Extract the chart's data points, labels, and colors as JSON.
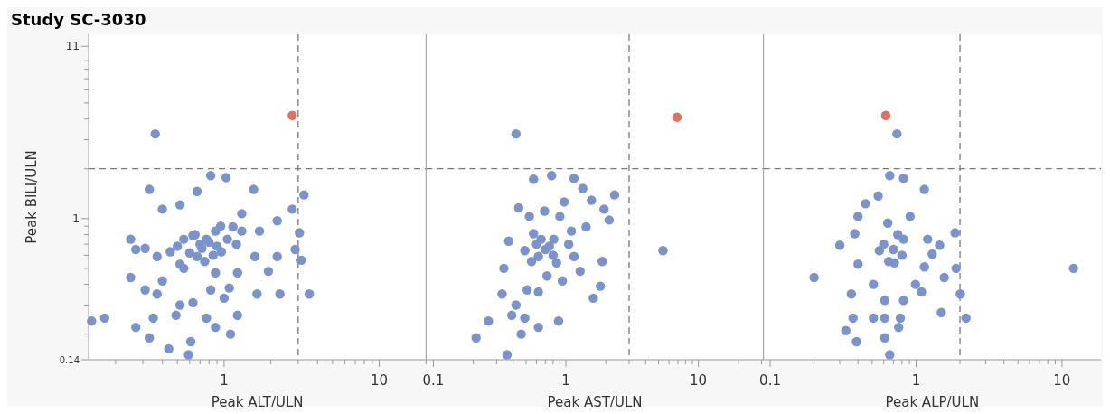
{
  "chart_data": [
    {
      "type": "scatter",
      "title": "Study SC-3030",
      "xlabel": "Peak ALT/ULN",
      "ylabel": "Peak BILI/ULN",
      "log": "xy",
      "marker": "circle",
      "xlim": [
        0.134,
        20
      ],
      "ylim": [
        0.14,
        13
      ],
      "xticks": [
        {
          "value": 0.2,
          "label": null
        },
        {
          "value": 0.3,
          "label": null
        },
        {
          "value": 0.4,
          "label": null
        },
        {
          "value": 0.5,
          "label": null
        },
        {
          "value": 0.6,
          "label": null
        },
        {
          "value": 0.7,
          "label": null
        },
        {
          "value": 0.8,
          "label": null
        },
        {
          "value": 0.9,
          "label": null
        },
        1,
        {
          "value": 2,
          "label": null
        },
        {
          "value": 3,
          "label": null
        },
        {
          "value": 4,
          "label": null
        },
        {
          "value": 5,
          "label": null
        },
        {
          "value": 6,
          "label": null
        },
        {
          "value": 7,
          "label": null
        },
        {
          "value": 8,
          "label": null
        },
        {
          "value": 9,
          "label": null
        },
        10,
        {
          "value": 20,
          "label": null
        }
      ],
      "yticks": [
        0.14,
        {
          "value": 0.2,
          "label": null
        },
        {
          "value": 0.3,
          "label": null
        },
        {
          "value": 0.4,
          "label": null
        },
        {
          "value": 0.5,
          "label": null
        },
        {
          "value": 0.6,
          "label": null
        },
        {
          "value": 0.7,
          "label": null
        },
        {
          "value": 0.8,
          "label": null
        },
        {
          "value": 0.9,
          "label": null
        },
        1,
        {
          "value": 2,
          "label": null
        },
        {
          "value": 3,
          "label": null
        },
        {
          "value": 4,
          "label": null
        },
        {
          "value": 5,
          "label": null
        },
        {
          "value": 6,
          "label": null
        },
        {
          "value": 7,
          "label": null
        },
        {
          "value": 8,
          "label": null
        },
        {
          "value": 9,
          "label": null
        },
        11
      ],
      "ref_lines": [
        {
          "axis": "y",
          "value": 2,
          "color": "#7a7a7a",
          "line_style": "dashed"
        },
        {
          "axis": "x",
          "value": 3,
          "color": "#7a7a7a",
          "line_style": "dashed"
        }
      ],
      "series": [
        {
          "color": "#7b93cb",
          "x": [
            0.82,
            1.03,
            1.55,
            0.33,
            2.75,
            3.27,
            2.2,
            3.06,
            2.87,
            3.14,
            3.54,
            2.29,
            1.63,
            0.35,
            0.17,
            0.14,
            0.27,
            0.33,
            0.44,
            0.88,
            1.1,
            0.59,
            0.61,
            0.25,
            0.25,
            0.27,
            0.4,
            0.52,
            0.67,
            0.77,
            0.88,
            1.14,
            1.3,
            1.69,
            1.58,
            1.22,
            1,
            0.82,
            0.63,
            0.49,
            0.37,
            0.31,
            0.52,
            0.67,
            0.4,
            1.3,
            0.55,
            0.72,
            0.37,
            0.45,
            1.93,
            2.2,
            1.22,
            0.77,
            0.52,
            0.31,
            0.96,
            0.63,
            0.88,
            1.08,
            0.7,
            0.8,
            0.6,
            0.9,
            0.75,
            0.65,
            1.05,
            0.55,
            0.85,
            0.95,
            1.2,
            0.5,
            0.36
          ],
          "values": [
            1.82,
            1.77,
            1.5,
            1.5,
            1.14,
            1.39,
            0.97,
            0.82,
            0.65,
            0.56,
            0.35,
            0.35,
            0.35,
            0.25,
            0.25,
            0.24,
            0.22,
            0.19,
            0.163,
            0.22,
            0.2,
            0.15,
            0.18,
            0.44,
            0.75,
            0.65,
            0.42,
            0.53,
            0.59,
            0.75,
            0.84,
            0.89,
            0.84,
            0.84,
            0.59,
            0.47,
            0.33,
            0.37,
            0.31,
            0.26,
            0.35,
            0.37,
            1.21,
            1.46,
            1.14,
            1.07,
            0.75,
            0.66,
            0.59,
            0.63,
            0.48,
            0.59,
            0.26,
            0.25,
            0.3,
            0.66,
            0.63,
            0.79,
            0.47,
            0.38,
            0.7,
            0.72,
            0.62,
            0.68,
            0.55,
            0.8,
            0.75,
            0.5,
            0.6,
            0.9,
            0.7,
            0.68,
            3.25
          ]
        },
        {
          "color": "#e07060",
          "x": [
            2.75
          ],
          "values": [
            4.2
          ]
        }
      ]
    },
    {
      "type": "scatter",
      "xlabel": "Peak AST/ULN",
      "log": "xy",
      "marker": "circle",
      "tick_labels": "x",
      "xlim": [
        0.088,
        31
      ],
      "ylim": [
        0.14,
        13
      ],
      "xticks": [
        0.1,
        {
          "value": 0.2,
          "label": null
        },
        {
          "value": 0.3,
          "label": null
        },
        {
          "value": 0.4,
          "label": null
        },
        {
          "value": 0.5,
          "label": null
        },
        {
          "value": 0.6,
          "label": null
        },
        {
          "value": 0.7,
          "label": null
        },
        {
          "value": 0.8,
          "label": null
        },
        {
          "value": 0.9,
          "label": null
        },
        1,
        {
          "value": 2,
          "label": null
        },
        {
          "value": 3,
          "label": null
        },
        {
          "value": 4,
          "label": null
        },
        {
          "value": 5,
          "label": null
        },
        {
          "value": 6,
          "label": null
        },
        {
          "value": 7,
          "label": null
        },
        {
          "value": 8,
          "label": null
        },
        {
          "value": 9,
          "label": null
        },
        10,
        {
          "value": 20,
          "label": null
        },
        {
          "value": 30,
          "label": null
        }
      ],
      "ref_lines": [
        {
          "axis": "y",
          "value": 2,
          "color": "#7a7a7a",
          "line_style": "dashed"
        },
        {
          "axis": "x",
          "value": 3,
          "color": "#7a7a7a",
          "line_style": "dashed"
        }
      ],
      "series": [
        {
          "color": "#7b93cb",
          "x": [
            0.57,
            0.78,
            1.15,
            2.33,
            2.12,
            1.88,
            1.82,
            1.61,
            0.88,
            0.62,
            0.46,
            0.36,
            0.21,
            0.26,
            0.33,
            0.34,
            0.37,
            0.44,
            0.97,
            1.34,
            1.56,
            1.94,
            1.42,
            1.05,
            0.85,
            0.62,
            0.42,
            0.39,
            0.49,
            0.62,
            0.81,
            0.57,
            0.49,
            0.9,
            0.69,
            1.1,
            1.15,
            0.72,
            0.94,
            0.51,
            1.28,
            0.53,
            0.6,
            0.7,
            0.8,
            0.65,
            0.55,
            0.75,
            0.42,
            5.4
          ],
          "values": [
            1.73,
            1.82,
            1.75,
            1.39,
            0.98,
            0.55,
            0.39,
            0.33,
            0.24,
            0.22,
            0.2,
            0.15,
            0.19,
            0.24,
            0.35,
            0.5,
            0.73,
            1.16,
            1.26,
            1.52,
            1.29,
            1.14,
            0.89,
            0.7,
            0.54,
            0.36,
            0.3,
            0.26,
            0.25,
            0.59,
            0.75,
            0.81,
            0.64,
            1.03,
            1.11,
            0.84,
            0.59,
            0.45,
            0.42,
            0.37,
            0.48,
            1.03,
            0.7,
            0.65,
            0.6,
            0.75,
            0.55,
            0.68,
            3.25,
            0.64
          ]
        },
        {
          "color": "#e07060",
          "x": [
            6.9
          ],
          "values": [
            4.1
          ]
        }
      ]
    },
    {
      "type": "scatter",
      "xlabel": "Peak ALP/ULN",
      "log": "xy",
      "marker": "circle",
      "tick_labels": "x",
      "xlim": [
        0.09,
        18.5
      ],
      "ylim": [
        0.14,
        13
      ],
      "xticks": [
        0.1,
        {
          "value": 0.2,
          "label": null
        },
        {
          "value": 0.3,
          "label": null
        },
        {
          "value": 0.4,
          "label": null
        },
        {
          "value": 0.5,
          "label": null
        },
        {
          "value": 0.6,
          "label": null
        },
        {
          "value": 0.7,
          "label": null
        },
        {
          "value": 0.8,
          "label": null
        },
        {
          "value": 0.9,
          "label": null
        },
        1,
        {
          "value": 2,
          "label": null
        },
        {
          "value": 3,
          "label": null
        },
        {
          "value": 4,
          "label": null
        },
        {
          "value": 5,
          "label": null
        },
        {
          "value": 6,
          "label": null
        },
        {
          "value": 7,
          "label": null
        },
        {
          "value": 8,
          "label": null
        },
        {
          "value": 9,
          "label": null
        },
        10
      ],
      "ref_lines": [
        {
          "axis": "y",
          "value": 2,
          "color": "#7a7a7a",
          "line_style": "dashed"
        },
        {
          "axis": "x",
          "value": 2,
          "color": "#7a7a7a",
          "line_style": "dashed"
        }
      ],
      "series": [
        {
          "color": "#7b93cb",
          "x": [
            0.66,
            0.82,
            1.14,
            0.55,
            0.45,
            1.85,
            1.45,
            1.88,
            2.01,
            2.2,
            1.49,
            0.76,
            0.66,
            0.39,
            0.33,
            0.37,
            0.36,
            0.3,
            0.4,
            0.38,
            0.4,
            0.51,
            0.61,
            0.82,
            0.99,
            1.14,
            1.2,
            0.91,
            0.64,
            0.56,
            0.71,
            0.82,
            0.61,
            0.51,
            0.61,
            0.78,
            1.29,
            1.56,
            1.09,
            0.6,
            0.7,
            0.8,
            0.65,
            0.75,
            0.74,
            0.2,
            12
          ],
          "values": [
            1.82,
            1.75,
            1.5,
            1.37,
            1.23,
            0.82,
            0.69,
            0.5,
            0.35,
            0.25,
            0.27,
            0.22,
            0.15,
            0.18,
            0.21,
            0.25,
            0.35,
            0.69,
            1.03,
            0.81,
            0.53,
            0.4,
            0.32,
            0.32,
            0.4,
            0.51,
            0.75,
            1.03,
            0.94,
            0.64,
            0.54,
            0.75,
            0.25,
            0.25,
            0.19,
            0.25,
            0.61,
            0.44,
            0.36,
            0.7,
            0.65,
            0.6,
            0.55,
            0.8,
            3.25,
            0.44,
            0.5
          ]
        },
        {
          "color": "#e07060",
          "x": [
            0.62
          ],
          "values": [
            4.2
          ]
        }
      ]
    }
  ]
}
